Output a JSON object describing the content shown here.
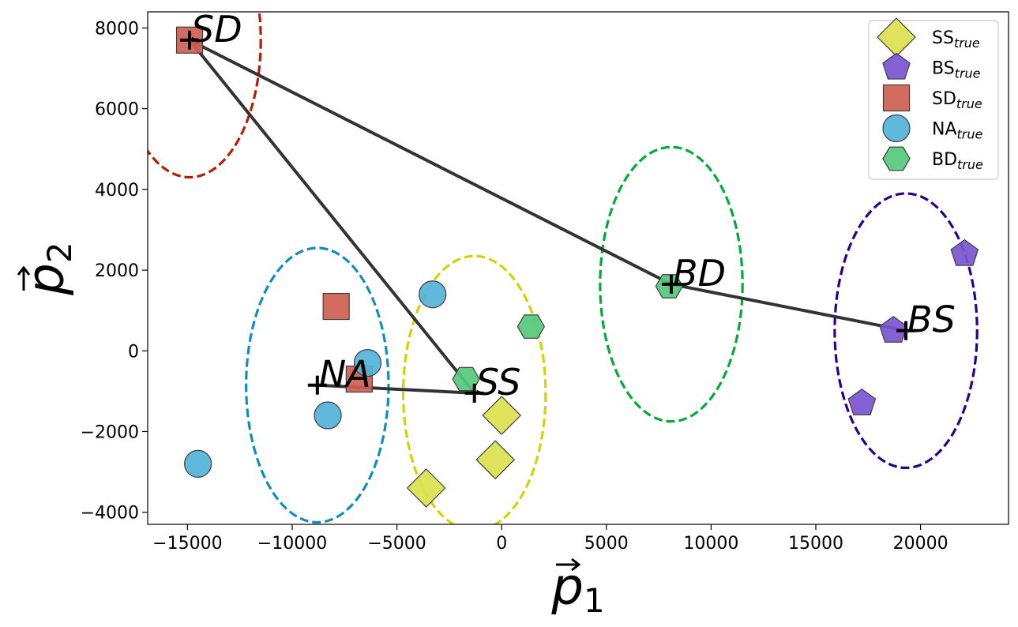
{
  "chart_data": {
    "type": "scatter",
    "title": "",
    "xlabel": {
      "base": "p",
      "sub": "1"
    },
    "ylabel": {
      "base": "p",
      "sub": "2"
    },
    "xlim": [
      -16900,
      24200
    ],
    "ylim": [
      -4300,
      8400
    ],
    "xticks": [
      -15000,
      -10000,
      -5000,
      0,
      5000,
      10000,
      15000,
      20000
    ],
    "xtick_labels": [
      "−15000",
      "−10000",
      "−5000",
      "0",
      "5000",
      "10000",
      "15000",
      "20000"
    ],
    "yticks": [
      -4000,
      -2000,
      0,
      2000,
      4000,
      6000,
      8000
    ],
    "ytick_labels": [
      "−4000",
      "−2000",
      "0",
      "2000",
      "4000",
      "6000",
      "8000"
    ],
    "grid": false,
    "legend_position": "top-right",
    "series": [
      {
        "name": "SS",
        "sub": "true",
        "marker": "diamond",
        "color": "#dce14e",
        "points": [
          [
            0,
            -1600
          ],
          [
            -300,
            -2700
          ],
          [
            -3600,
            -3400
          ]
        ]
      },
      {
        "name": "BS",
        "sub": "true",
        "marker": "pentagon",
        "color": "#7b55cf",
        "points": [
          [
            22100,
            2400
          ],
          [
            18700,
            500
          ],
          [
            17200,
            -1300
          ]
        ]
      },
      {
        "name": "SD",
        "sub": "true",
        "marker": "square",
        "color": "#cd5f51",
        "points": [
          [
            -14900,
            7700
          ],
          [
            -7900,
            1100
          ],
          [
            -6800,
            -700
          ]
        ]
      },
      {
        "name": "NA",
        "sub": "true",
        "marker": "circle",
        "color": "#52b3d9",
        "points": [
          [
            -3300,
            1400
          ],
          [
            -6400,
            -300
          ],
          [
            -8300,
            -1600
          ],
          [
            -14500,
            -2800
          ]
        ]
      },
      {
        "name": "BD",
        "sub": "true",
        "marker": "hexagon",
        "color": "#54c97b",
        "points": [
          [
            1400,
            600
          ],
          [
            -1700,
            -700
          ],
          [
            8000,
            1600
          ]
        ]
      }
    ],
    "centroids": [
      {
        "label": "SD",
        "x": -14900,
        "y": 7700,
        "radius": 3400,
        "ring_color": "#b01e06"
      },
      {
        "label": "NA",
        "x": -8800,
        "y": -850,
        "radius": 3400,
        "ring_color": "#108dbf"
      },
      {
        "label": "SS",
        "x": -1300,
        "y": -1050,
        "radius": 3400,
        "ring_color": "#d3d300"
      },
      {
        "label": "BD",
        "x": 8100,
        "y": 1650,
        "radius": 3400,
        "ring_color": "#00ab37"
      },
      {
        "label": "BS",
        "x": 19300,
        "y": 500,
        "radius": 3400,
        "ring_color": "#2a008a"
      }
    ],
    "edges": [
      [
        "SD",
        "SS"
      ],
      [
        "SD",
        "BD"
      ],
      [
        "NA",
        "SS"
      ],
      [
        "BD",
        "BS"
      ]
    ]
  }
}
